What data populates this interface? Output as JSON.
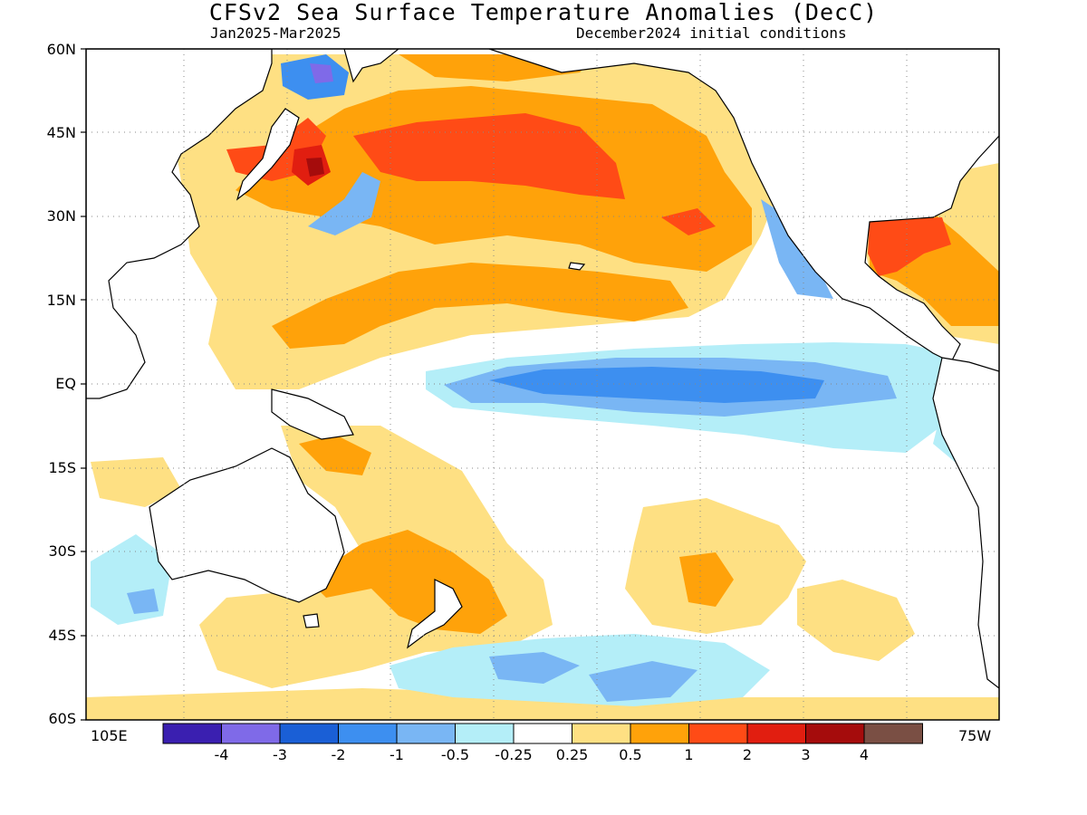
{
  "title": "CFSv2 Sea Surface Temperature Anomalies (DecC)",
  "subtitle_left": "Jan2025-Mar2025",
  "subtitle_right": "December2024 initial conditions",
  "lat_labels": [
    "60N",
    "45N",
    "30N",
    "15N",
    "EQ",
    "15S",
    "30S",
    "45S",
    "60S"
  ],
  "lon_labels": {
    "left": "105E",
    "right": "75W"
  },
  "legend": {
    "colors": [
      "#3a1fb0",
      "#7f6ae8",
      "#1a5fd6",
      "#3d8ff0",
      "#79b6f4",
      "#b4eef8",
      "#ffffff",
      "#fee083",
      "#ffa20a",
      "#ff4b16",
      "#e11e10",
      "#a50c0c",
      "#7a4f44"
    ],
    "tick_labels": [
      "-4",
      "-3",
      "-2",
      "-1",
      "-0.5",
      "-0.25",
      "0.25",
      "0.5",
      "1",
      "2",
      "3",
      "4"
    ]
  }
}
